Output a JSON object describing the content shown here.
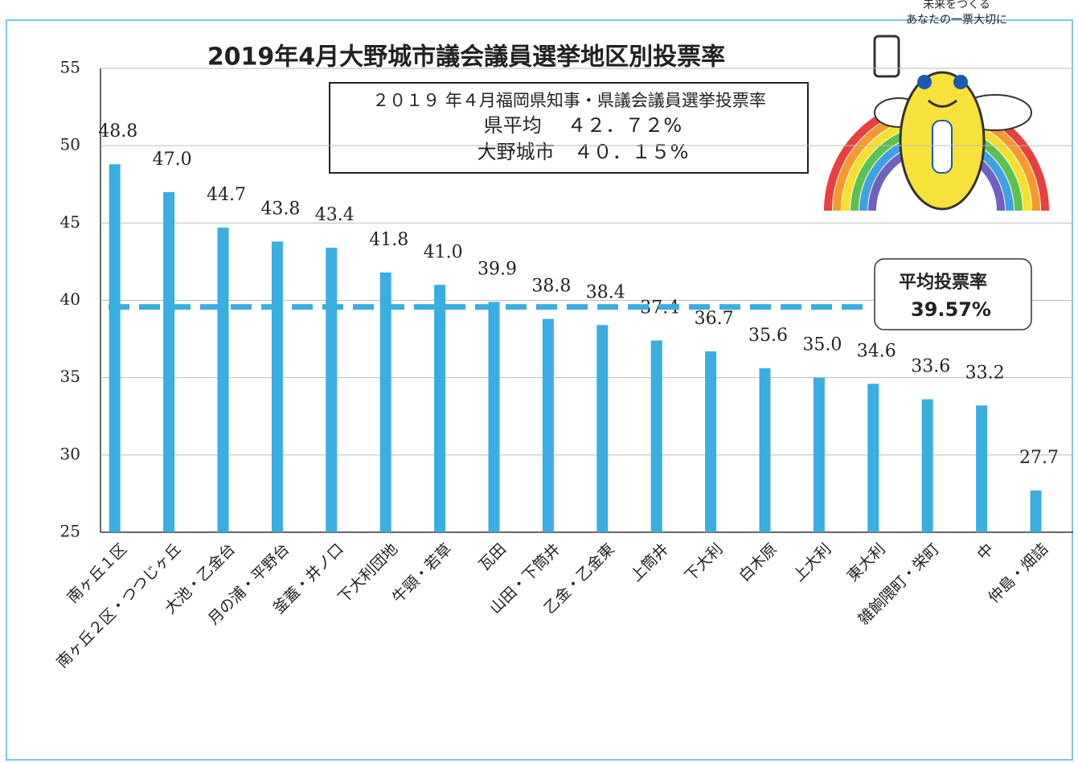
{
  "chart_data": {
    "type": "bar",
    "title": "2019年4月大野城市議会議員選挙地区別投票率",
    "categories": [
      "南ヶ丘１区",
      "南ヶ丘２区・つつじヶ丘",
      "大池・乙金台",
      "月の浦・平野台",
      "釜蓋・井ノ口",
      "下大利団地",
      "牛頸・若草",
      "瓦田",
      "山田・下筒井",
      "乙金・乙金東",
      "上筒井",
      "下大利",
      "白木原",
      "上大利",
      "東大利",
      "雑餉隈町・栄町",
      "中",
      "仲島・畑詰"
    ],
    "values": [
      48.8,
      47.0,
      44.7,
      43.8,
      43.4,
      41.8,
      41.0,
      39.9,
      38.8,
      38.4,
      37.4,
      36.7,
      35.6,
      35.0,
      34.6,
      33.6,
      33.2,
      27.7
    ],
    "value_labels": [
      "48.8",
      "47.0",
      "44.7",
      "43.8",
      "43.4",
      "41.8",
      "41.0",
      "39.9",
      "38.8",
      "38.4",
      "37.4",
      "36.7",
      "35.6",
      "35.0",
      "34.6",
      "33.6",
      "33.2",
      "27.7"
    ],
    "color": "#3aaee0",
    "ylim": [
      25,
      55
    ],
    "yticks": [
      25,
      30,
      35,
      40,
      45,
      50,
      55
    ],
    "grid": true,
    "average_line": {
      "label": "平均投票率",
      "value": 39.57,
      "value_label": "39.57%",
      "color": "#3aaee0"
    },
    "info_box": [
      "２０１９ 年４月福岡県知事・県議会議員選挙投票率",
      "県平均　 ４２．７２%",
      "大野城市　４０．１５%"
    ],
    "mascot_caption": [
      "未来をつくる",
      "あなたの一票大切に"
    ]
  }
}
